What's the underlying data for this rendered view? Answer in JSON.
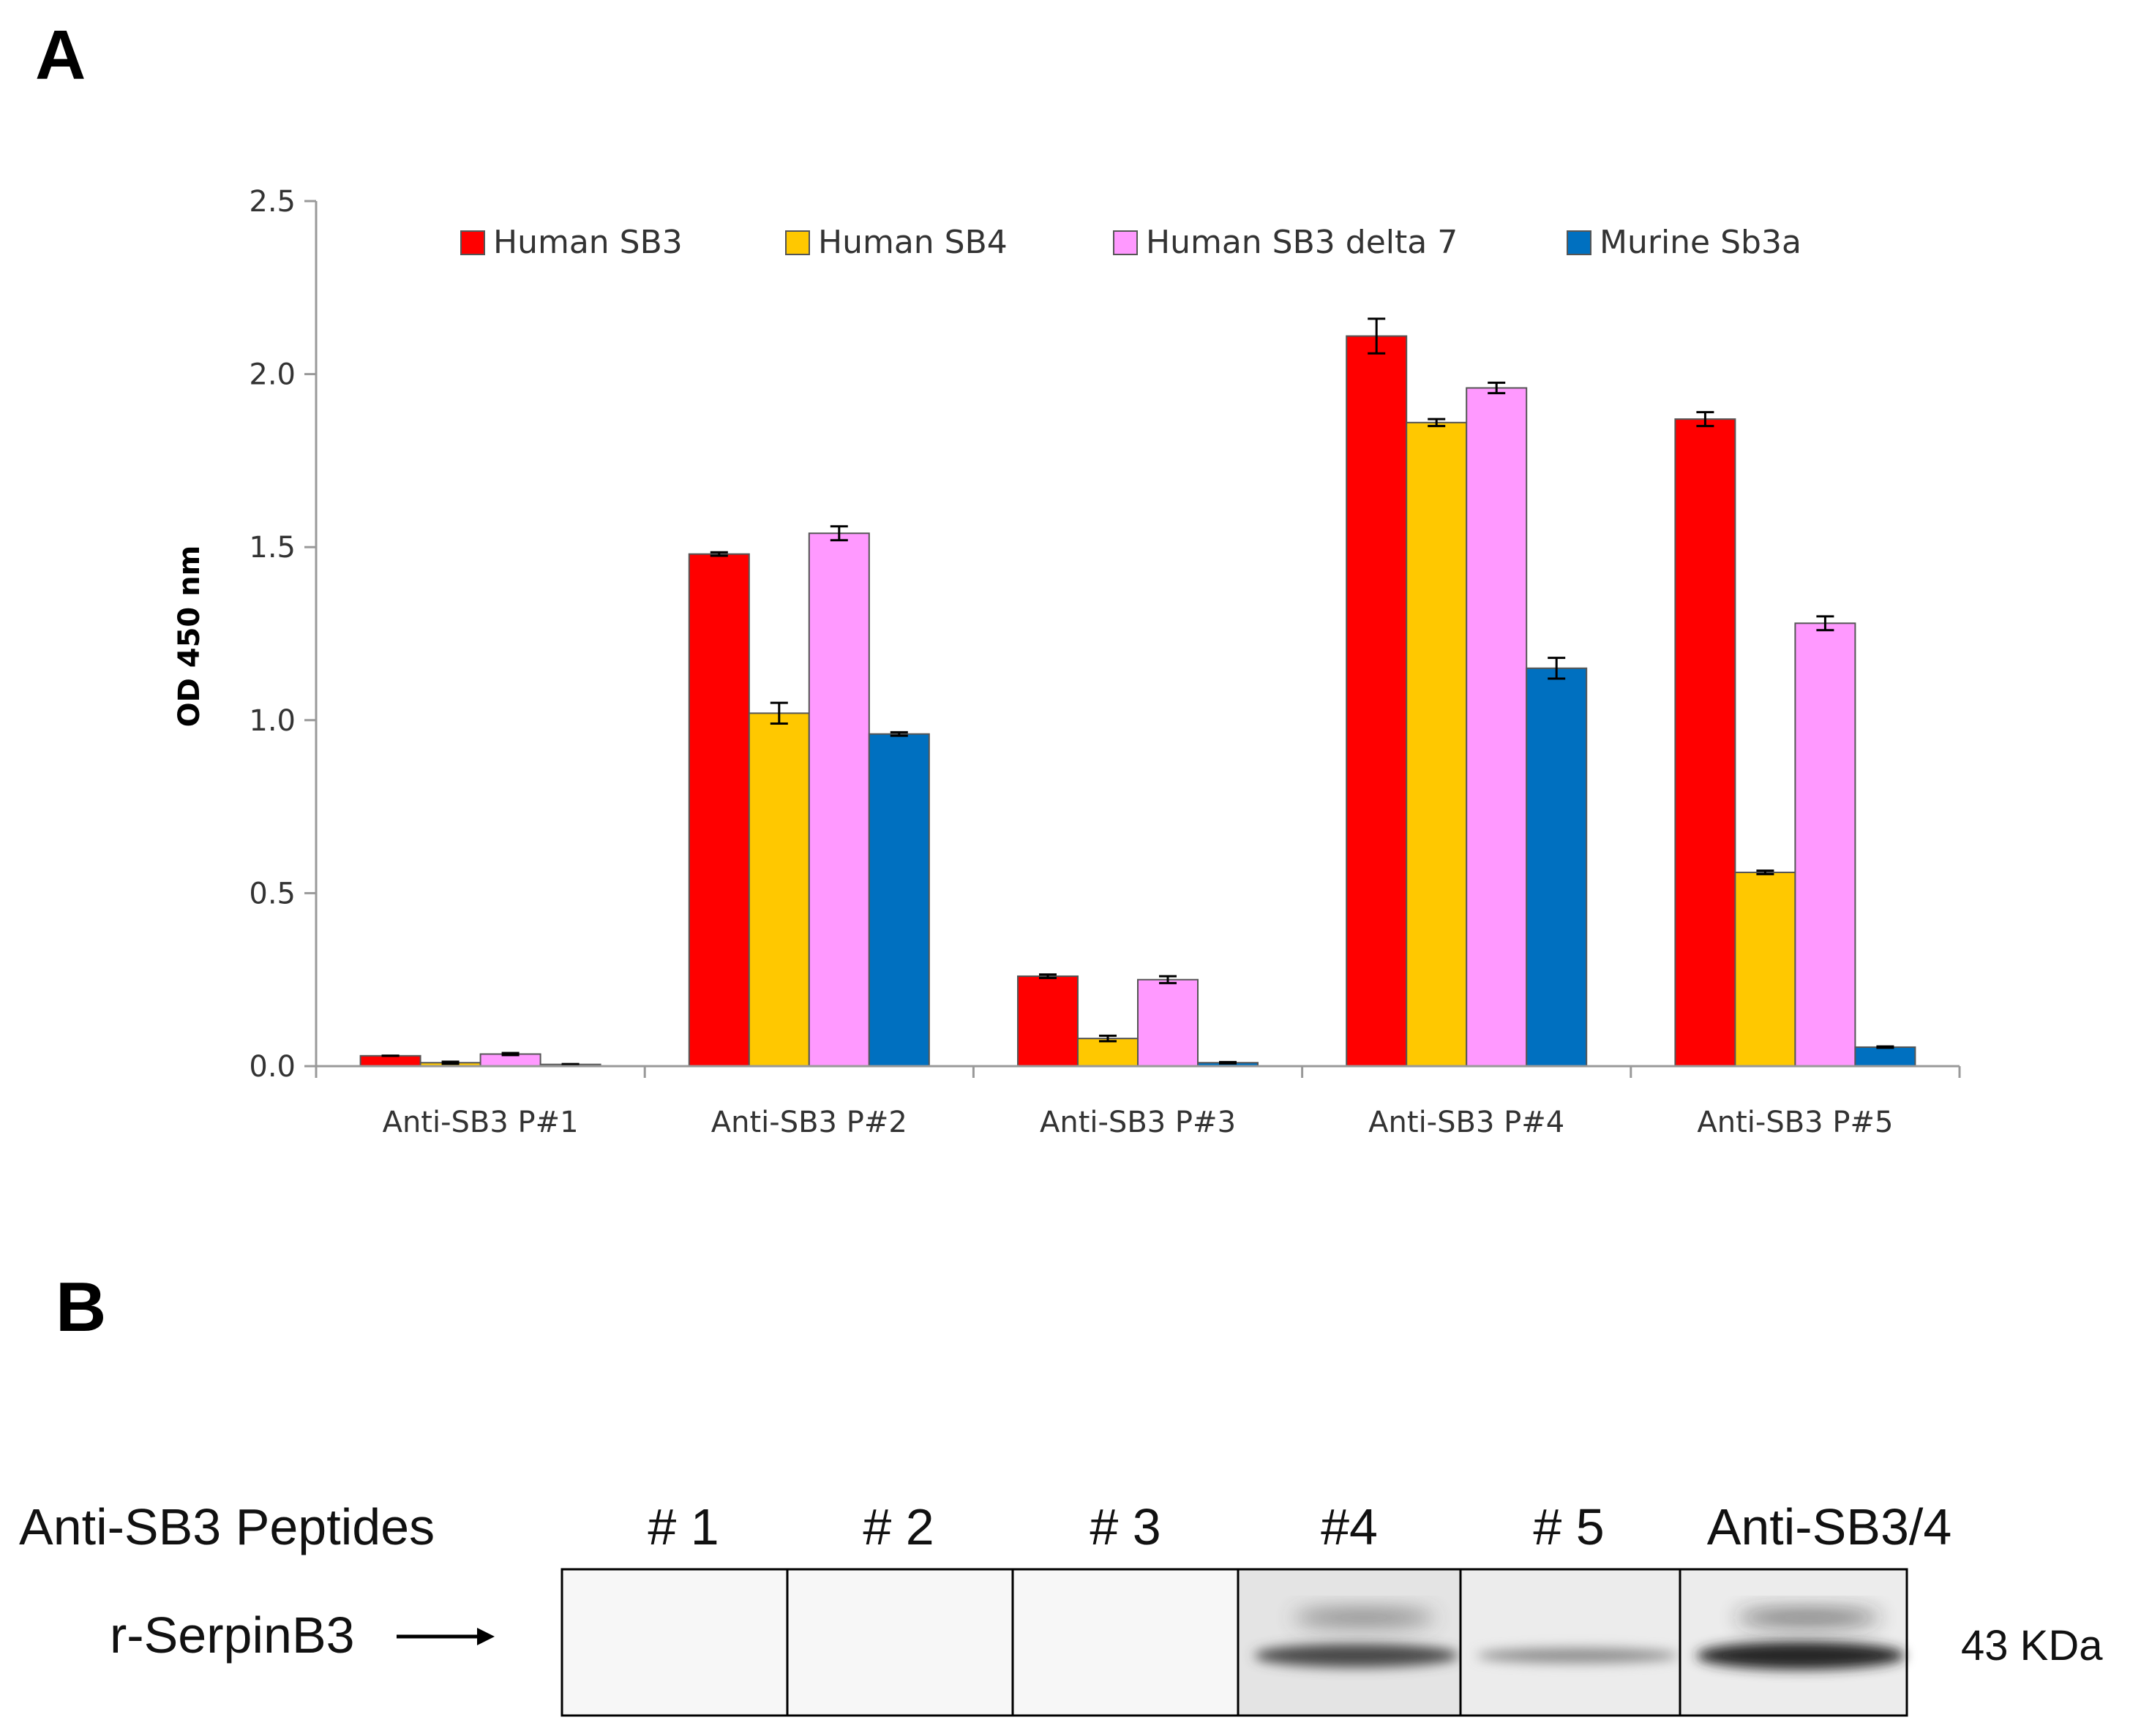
{
  "panel_labels": {
    "a": "A",
    "b": "B"
  },
  "chart_data": {
    "type": "bar",
    "title": "",
    "xlabel": "",
    "ylabel": "OD 450 nm",
    "ylim": [
      0,
      2.5
    ],
    "yticks": [
      "0.0",
      "0.5",
      "1.0",
      "1.5",
      "2.0",
      "2.5"
    ],
    "ytick_values": [
      0,
      0.5,
      1.0,
      1.5,
      2.0,
      2.5
    ],
    "grid": false,
    "legend_placement": "top",
    "categories": [
      "Anti-SB3 P#1",
      "Anti-SB3 P#2",
      "Anti-SB3 P#3",
      "Anti-SB3 P#4",
      "Anti-SB3 P#5"
    ],
    "series": [
      {
        "name": "Human SB3",
        "color": "#ff0000",
        "values": [
          0.03,
          1.48,
          0.26,
          2.11,
          1.87
        ],
        "errors": [
          0.0,
          0.005,
          0.005,
          0.05,
          0.02
        ]
      },
      {
        "name": "Human SB4",
        "color": "#ffc800",
        "values": [
          0.01,
          1.02,
          0.08,
          1.86,
          0.56
        ],
        "errors": [
          0.003,
          0.03,
          0.008,
          0.01,
          0.005
        ]
      },
      {
        "name": "Human SB3 delta 7",
        "color": "#ff99ff",
        "values": [
          0.035,
          1.54,
          0.25,
          1.96,
          1.28
        ],
        "errors": [
          0.003,
          0.02,
          0.01,
          0.015,
          0.02
        ]
      },
      {
        "name": "Murine Sb3a",
        "color": "#0070c0",
        "values": [
          0.005,
          0.96,
          0.01,
          1.15,
          0.055
        ],
        "errors": [
          0.001,
          0.005,
          0.002,
          0.03,
          0.002
        ]
      }
    ]
  },
  "western_blot": {
    "row_label": "Anti-SB3 Peptides",
    "band_label": "r-SerpinB3",
    "mw_label": "43 KDa",
    "lanes": [
      {
        "label": "# 1",
        "band": 0
      },
      {
        "label": "# 2",
        "band": 0
      },
      {
        "label": "# 3",
        "band": 0
      },
      {
        "label": "#4",
        "band": 0.75
      },
      {
        "label": "# 5",
        "band": 0.35
      },
      {
        "label": "Anti-SB3/4",
        "band": 0.95
      }
    ]
  }
}
